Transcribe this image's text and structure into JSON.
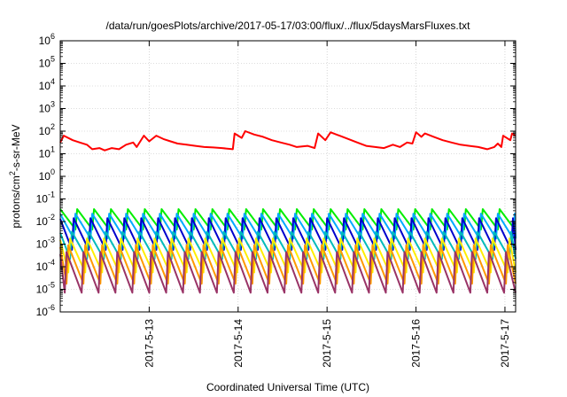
{
  "chart_data": {
    "type": "line",
    "title": "/data/run/goesPlots/archive/2017-05-17/03:00/flux/../flux/5daysMarsFluxes.txt",
    "xlabel": "Coordinated Universal Time (UTC)",
    "ylabel": {
      "prefix": "protons/cm",
      "sup": "2",
      "suffix": "-s-sr-MeV"
    },
    "yscale": "log",
    "ylim_exp": [
      -6,
      6
    ],
    "y_ticks": [
      {
        "base": "10",
        "exp": "6"
      },
      {
        "base": "10",
        "exp": "5"
      },
      {
        "base": "10",
        "exp": "4"
      },
      {
        "base": "10",
        "exp": "3"
      },
      {
        "base": "10",
        "exp": "2"
      },
      {
        "base": "10",
        "exp": "1"
      },
      {
        "base": "10",
        "exp": "0"
      },
      {
        "base": "10",
        "exp": "-1"
      },
      {
        "base": "10",
        "exp": "-2"
      },
      {
        "base": "10",
        "exp": "-3"
      },
      {
        "base": "10",
        "exp": "-4"
      },
      {
        "base": "10",
        "exp": "-5"
      },
      {
        "base": "10",
        "exp": "-6"
      }
    ],
    "x_range_days": [
      0,
      5.12
    ],
    "x_ticks": [
      {
        "label": "2017-5-13",
        "day": 1.0
      },
      {
        "label": "2017-5-14",
        "day": 2.0
      },
      {
        "label": "2017-5-15",
        "day": 3.0
      },
      {
        "label": "2017-5-16",
        "day": 4.0
      },
      {
        "label": "2017-5-17",
        "day": 5.0
      }
    ],
    "grid": true,
    "series": [
      {
        "color": "#ff0000",
        "points": [
          [
            0.0,
            1.5
          ],
          [
            0.04,
            1.8
          ],
          [
            0.14,
            1.6
          ],
          [
            0.22,
            1.5
          ],
          [
            0.3,
            1.4
          ],
          [
            0.36,
            1.2
          ],
          [
            0.44,
            1.25
          ],
          [
            0.5,
            1.15
          ],
          [
            0.58,
            1.25
          ],
          [
            0.66,
            1.2
          ],
          [
            0.74,
            1.4
          ],
          [
            0.82,
            1.5
          ],
          [
            0.86,
            1.3
          ],
          [
            0.94,
            1.8
          ],
          [
            1.0,
            1.55
          ],
          [
            1.08,
            1.8
          ],
          [
            1.16,
            1.65
          ],
          [
            1.24,
            1.55
          ],
          [
            1.32,
            1.45
          ],
          [
            1.42,
            1.4
          ],
          [
            1.52,
            1.35
          ],
          [
            1.62,
            1.3
          ],
          [
            1.72,
            1.28
          ],
          [
            1.82,
            1.25
          ],
          [
            1.94,
            1.2
          ],
          [
            1.96,
            1.9
          ],
          [
            2.04,
            1.7
          ],
          [
            2.08,
            2.0
          ],
          [
            2.18,
            1.85
          ],
          [
            2.28,
            1.75
          ],
          [
            2.38,
            1.6
          ],
          [
            2.48,
            1.5
          ],
          [
            2.58,
            1.4
          ],
          [
            2.66,
            1.3
          ],
          [
            2.78,
            1.35
          ],
          [
            2.86,
            1.25
          ],
          [
            2.9,
            1.9
          ],
          [
            2.98,
            1.6
          ],
          [
            3.04,
            1.95
          ],
          [
            3.14,
            1.8
          ],
          [
            3.24,
            1.65
          ],
          [
            3.34,
            1.5
          ],
          [
            3.44,
            1.35
          ],
          [
            3.54,
            1.3
          ],
          [
            3.64,
            1.25
          ],
          [
            3.74,
            1.4
          ],
          [
            3.82,
            1.3
          ],
          [
            3.9,
            1.5
          ],
          [
            3.96,
            1.45
          ],
          [
            4.0,
            1.95
          ],
          [
            4.06,
            1.75
          ],
          [
            4.1,
            1.9
          ],
          [
            4.2,
            1.75
          ],
          [
            4.3,
            1.6
          ],
          [
            4.4,
            1.5
          ],
          [
            4.5,
            1.4
          ],
          [
            4.6,
            1.35
          ],
          [
            4.7,
            1.3
          ],
          [
            4.8,
            1.2
          ],
          [
            4.88,
            1.3
          ],
          [
            4.92,
            1.45
          ],
          [
            4.96,
            1.3
          ],
          [
            4.98,
            1.8
          ],
          [
            5.06,
            1.6
          ],
          [
            5.08,
            1.9
          ],
          [
            5.12,
            1.8
          ]
        ]
      },
      {
        "color": "#00ee00",
        "phase": 0.0,
        "top": -1.45,
        "bottom": -2.35,
        "period": 0.19
      },
      {
        "color": "#00aaff",
        "phase": 0.02,
        "top": -1.65,
        "bottom": -2.75,
        "period": 0.19
      },
      {
        "color": "#0000cc",
        "phase": 0.04,
        "top": -1.85,
        "bottom": -3.25,
        "period": 0.19
      },
      {
        "color": "#00bbbb",
        "phase": 0.06,
        "top": -2.45,
        "bottom": -3.65,
        "period": 0.19
      },
      {
        "color": "#ffee00",
        "phase": 0.08,
        "top": -2.75,
        "bottom": -4.25,
        "period": 0.19
      },
      {
        "color": "#ff9900",
        "phase": 0.1,
        "top": -3.05,
        "bottom": -4.75,
        "period": 0.19
      },
      {
        "color": "#993366",
        "phase": 0.12,
        "top": -3.35,
        "bottom": -5.15,
        "period": 0.19
      }
    ]
  }
}
